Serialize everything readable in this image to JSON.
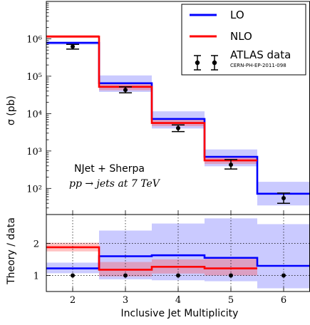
{
  "chart_data": [
    {
      "panel": "main",
      "type": "line",
      "ylabel": "σ (pb)",
      "yscale": "log",
      "ylim": [
        20,
        10000000
      ],
      "xlim": [
        1.5,
        6.5
      ],
      "grid": false,
      "legend_position": "top-right",
      "y_tick_labels": [
        "10²",
        "10³",
        "10⁴",
        "10⁵",
        "10⁶"
      ],
      "y_tick_values": [
        100,
        1000,
        10000,
        100000,
        1000000
      ],
      "annotations": [
        "NJet + Sherpa",
        "pp → jets at 7 TeV"
      ],
      "x": [
        2,
        3,
        4,
        5,
        6
      ],
      "series": [
        {
          "name": "LO",
          "color": "#0000ff",
          "values": [
            780000,
            65000,
            7200,
            700,
            72
          ],
          "band_low": [
            700000,
            38000,
            4000,
            390,
            35
          ],
          "band_high": [
            860000,
            105000,
            11500,
            1100,
            150
          ]
        },
        {
          "name": "NLO",
          "color": "#ff0000",
          "values": [
            1150000,
            52000,
            5600,
            560,
            null
          ],
          "band_low": [
            1050000,
            42000,
            4600,
            450,
            null
          ],
          "band_high": [
            1270000,
            62000,
            6900,
            680,
            null
          ]
        },
        {
          "name": "ATLAS data",
          "sublabel": "CERN-PH-EP-2011-098",
          "color": "#000000",
          "values": [
            620000,
            43000,
            4100,
            430,
            55
          ],
          "err_low": [
            530000,
            36000,
            3300,
            330,
            40
          ],
          "err_high": [
            710000,
            52000,
            5000,
            590,
            75
          ]
        }
      ]
    },
    {
      "panel": "ratio",
      "type": "line",
      "ylabel": "Theory / data",
      "xlabel": "Inclusive Jet Multiplicity",
      "ylim": [
        0.5,
        2.9
      ],
      "xlim": [
        1.5,
        6.5
      ],
      "grid": true,
      "x_tick_labels": [
        "2",
        "3",
        "4",
        "5",
        "6"
      ],
      "x_tick_values": [
        2,
        3,
        4,
        5,
        6
      ],
      "y_tick_labels": [
        "1",
        "2"
      ],
      "y_tick_values": [
        1,
        2
      ],
      "x": [
        2,
        3,
        4,
        5,
        6
      ],
      "series": [
        {
          "name": "LO",
          "color": "#0000ff",
          "values": [
            1.22,
            1.6,
            1.63,
            1.55,
            1.3
          ],
          "band_low": [
            1.07,
            0.88,
            0.85,
            0.82,
            0.6
          ],
          "band_high": [
            1.4,
            2.4,
            2.62,
            2.78,
            2.6
          ]
        },
        {
          "name": "NLO",
          "color": "#ff0000",
          "values": [
            1.88,
            1.18,
            1.27,
            1.22,
            null
          ],
          "band_low": [
            1.75,
            0.97,
            1.06,
            1.0,
            null
          ],
          "band_high": [
            2.02,
            1.42,
            1.5,
            1.52,
            null
          ]
        },
        {
          "name": "ATLAS data",
          "color": "#000000",
          "values": [
            1,
            1,
            1,
            1,
            1
          ]
        }
      ]
    }
  ]
}
